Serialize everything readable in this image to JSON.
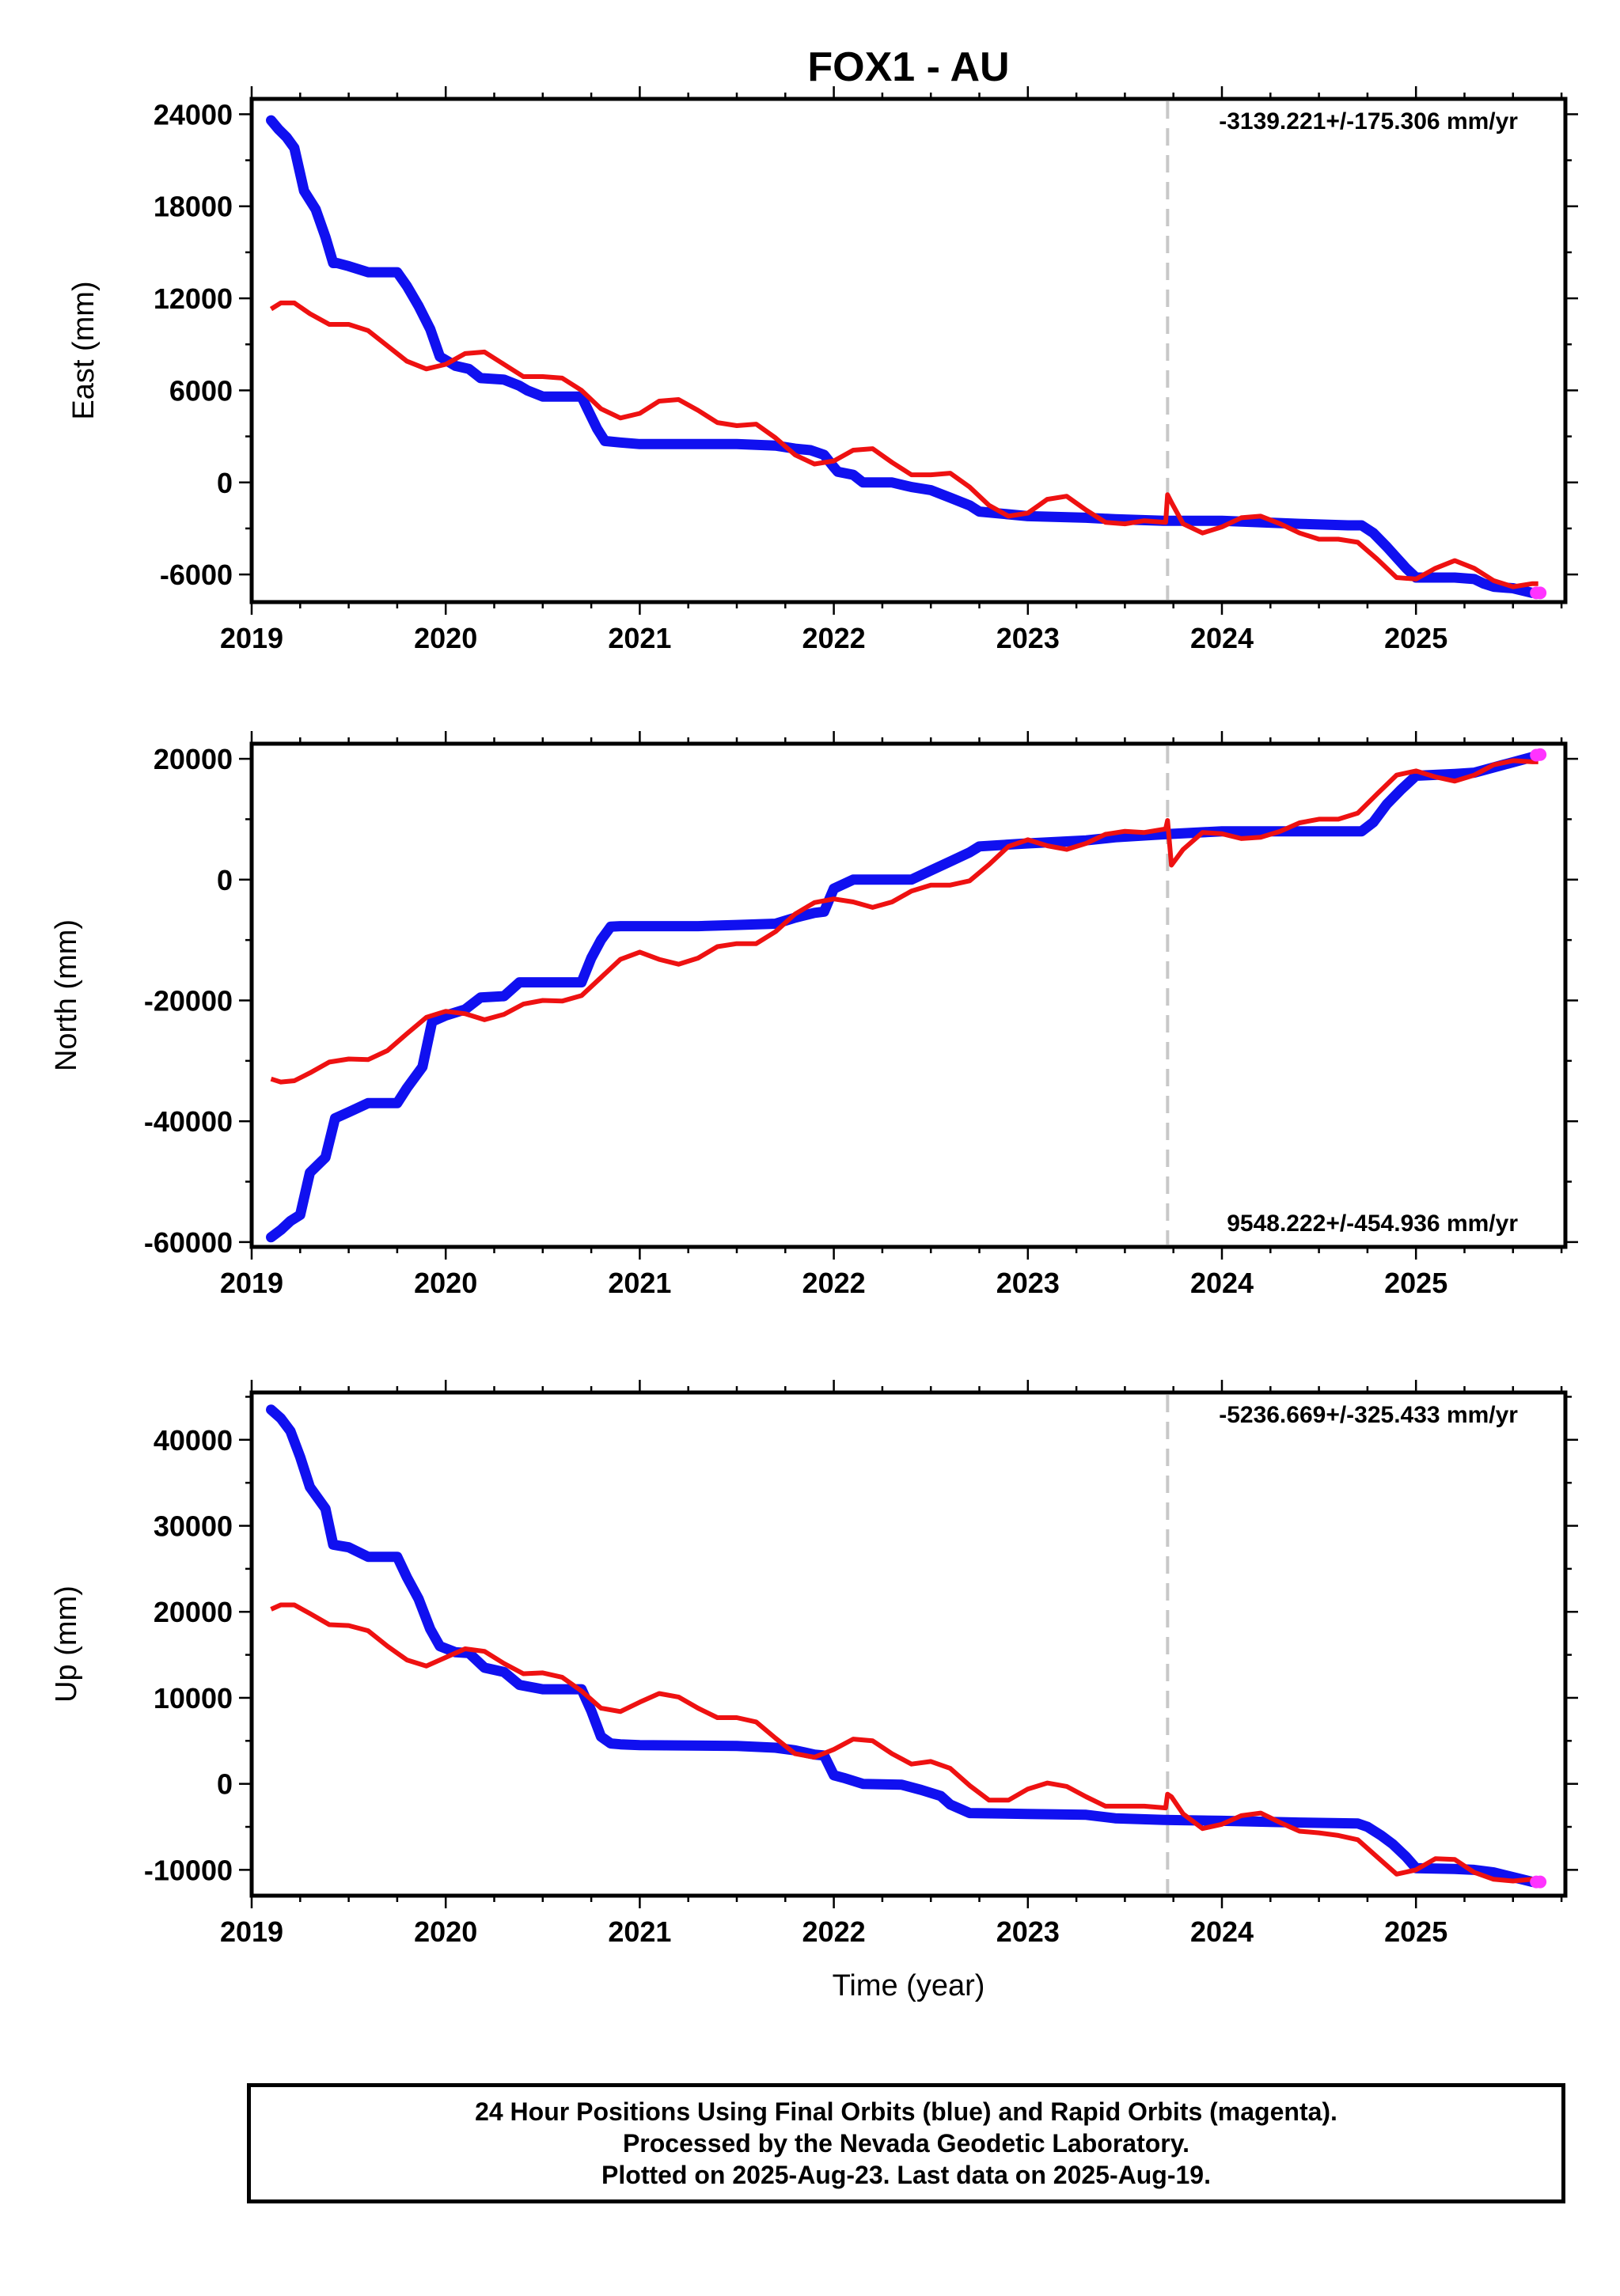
{
  "title": "FOX1 - AU",
  "xlabel": "Time (year)",
  "footer": [
    "24 Hour Positions Using Final Orbits (blue) and Rapid Orbits (magenta).",
    "Processed by the Nevada Geodetic Laboratory.",
    "Plotted on 2025-Aug-23. Last data on 2025-Aug-19."
  ],
  "colors": {
    "final": "#1010f0",
    "rapid": "#ff33ff",
    "model": "#ee1111",
    "break": "#c8c8c8"
  },
  "chart_data": [
    {
      "type": "line",
      "ylabel": "East (mm)",
      "rate": "-3139.221+/-175.306 mm/yr",
      "rate_position": "top-right",
      "xlim": [
        2019.0,
        2025.77
      ],
      "ylim": [
        -7800,
        25000
      ],
      "xticks": [
        "2019",
        "2020",
        "2021",
        "2022",
        "2023",
        "2024",
        "2025"
      ],
      "yticks": [
        "-6000",
        "0",
        "6000",
        "12000",
        "18000",
        "24000"
      ],
      "break_x": 2023.72,
      "series": [
        {
          "role": "final",
          "x": [
            2019.1,
            2019.14,
            2019.18,
            2019.22,
            2019.27,
            2019.33,
            2019.38,
            2019.42,
            2019.44,
            2019.5,
            2019.6,
            2019.75,
            2019.8,
            2019.86,
            2019.92,
            2019.97,
            2020.05,
            2020.12,
            2020.18,
            2020.3,
            2020.38,
            2020.42,
            2020.5,
            2020.7,
            2020.73,
            2020.78,
            2020.82,
            2020.9,
            2021.0,
            2021.5,
            2021.7,
            2021.8,
            2021.88,
            2021.95,
            2022.0,
            2022.02,
            2022.1,
            2022.15,
            2022.3,
            2022.4,
            2022.5,
            2022.6,
            2022.7,
            2022.75,
            2023.0,
            2023.3,
            2023.45,
            2023.7,
            2024.0,
            2024.4,
            2024.65,
            2024.72,
            2024.78,
            2024.85,
            2024.9,
            2024.95,
            2025.0,
            2025.2,
            2025.3,
            2025.35,
            2025.4,
            2025.5,
            2025.6,
            2025.63
          ],
          "y": [
            23600,
            23000,
            22500,
            21800,
            19000,
            17800,
            16000,
            14300,
            14300,
            14100,
            13700,
            13700,
            12800,
            11500,
            10000,
            8200,
            7600,
            7400,
            6800,
            6700,
            6300,
            6000,
            5600,
            5600,
            4800,
            3500,
            2700,
            2600,
            2500,
            2500,
            2400,
            2200,
            2100,
            1800,
            1000,
            700,
            500,
            0,
            0,
            -300,
            -500,
            -1000,
            -1500,
            -1900,
            -2200,
            -2300,
            -2400,
            -2500,
            -2500,
            -2700,
            -2800,
            -2800,
            -3300,
            -4200,
            -4900,
            -5600,
            -6200,
            -6200,
            -6300,
            -6600,
            -6800,
            -6900,
            -7200,
            -7200
          ]
        },
        {
          "role": "rapid",
          "x": [
            2025.62,
            2025.64
          ],
          "y": [
            -7200,
            -7200
          ]
        },
        {
          "role": "model",
          "x": [
            2019.1,
            2019.15,
            2019.22,
            2019.3,
            2019.4,
            2019.5,
            2019.6,
            2019.7,
            2019.8,
            2019.9,
            2020.0,
            2020.1,
            2020.2,
            2020.3,
            2020.4,
            2020.5,
            2020.6,
            2020.7,
            2020.8,
            2020.9,
            2021.0,
            2021.1,
            2021.2,
            2021.3,
            2021.4,
            2021.5,
            2021.6,
            2021.7,
            2021.8,
            2021.9,
            2022.0,
            2022.1,
            2022.2,
            2022.3,
            2022.4,
            2022.5,
            2022.6,
            2022.7,
            2022.8,
            2022.9,
            2023.0,
            2023.1,
            2023.2,
            2023.3,
            2023.4,
            2023.5,
            2023.6,
            2023.71,
            2023.72,
            2023.74,
            2023.8,
            2023.9,
            2024.0,
            2024.1,
            2024.2,
            2024.3,
            2024.4,
            2024.5,
            2024.6,
            2024.7,
            2024.8,
            2024.9,
            2025.0,
            2025.1,
            2025.2,
            2025.3,
            2025.4,
            2025.5,
            2025.6,
            2025.63
          ],
          "y": [
            11300,
            11700,
            11700,
            11000,
            10300,
            10300,
            9900,
            8900,
            7900,
            7400,
            7700,
            8400,
            8500,
            7700,
            6900,
            6900,
            6800,
            6000,
            4800,
            4200,
            4500,
            5300,
            5400,
            4700,
            3900,
            3700,
            3800,
            2900,
            1800,
            1200,
            1400,
            2100,
            2200,
            1300,
            500,
            500,
            600,
            -300,
            -1500,
            -2200,
            -2000,
            -1100,
            -900,
            -1800,
            -2600,
            -2700,
            -2500,
            -2600,
            -800,
            -1300,
            -2700,
            -3300,
            -2900,
            -2300,
            -2200,
            -2700,
            -3300,
            -3700,
            -3700,
            -3900,
            -5000,
            -6200,
            -6300,
            -5600,
            -5100,
            -5600,
            -6400,
            -6800,
            -6600,
            -6600
          ]
        }
      ]
    },
    {
      "type": "line",
      "ylabel": "North (mm)",
      "rate": "9548.222+/-454.936 mm/yr",
      "rate_position": "bottom-right",
      "xlim": [
        2019.0,
        2025.77
      ],
      "ylim": [
        -60800,
        22500
      ],
      "xticks": [
        "2019",
        "2020",
        "2021",
        "2022",
        "2023",
        "2024",
        "2025"
      ],
      "yticks": [
        "-60000",
        "-40000",
        "-20000",
        "0",
        "20000"
      ],
      "break_x": 2023.72,
      "series": [
        {
          "role": "final",
          "x": [
            2019.1,
            2019.15,
            2019.2,
            2019.25,
            2019.3,
            2019.38,
            2019.43,
            2019.5,
            2019.6,
            2019.75,
            2019.8,
            2019.88,
            2019.93,
            2020.0,
            2020.1,
            2020.18,
            2020.3,
            2020.38,
            2020.5,
            2020.7,
            2020.75,
            2020.8,
            2020.85,
            2020.9,
            2021.0,
            2021.3,
            2021.5,
            2021.7,
            2021.8,
            2021.9,
            2021.95,
            2022.0,
            2022.1,
            2022.4,
            2022.5,
            2022.6,
            2022.7,
            2022.75,
            2023.0,
            2023.3,
            2023.45,
            2023.7,
            2024.0,
            2024.4,
            2024.65,
            2024.72,
            2024.78,
            2024.85,
            2024.92,
            2025.0,
            2025.2,
            2025.3,
            2025.45,
            2025.6,
            2025.63
          ],
          "y": [
            -59200,
            -58000,
            -56500,
            -55500,
            -48500,
            -46000,
            -39500,
            -38500,
            -37000,
            -37000,
            -34500,
            -31000,
            -23500,
            -22500,
            -21500,
            -19500,
            -19300,
            -17000,
            -17000,
            -17000,
            -13000,
            -10000,
            -7800,
            -7700,
            -7700,
            -7700,
            -7500,
            -7300,
            -6300,
            -5500,
            -5300,
            -1500,
            0,
            0,
            1500,
            3000,
            4500,
            5500,
            6000,
            6500,
            7000,
            7500,
            8000,
            8000,
            8000,
            8000,
            9500,
            12500,
            14800,
            17200,
            17500,
            17700,
            19000,
            20300,
            20600
          ]
        },
        {
          "role": "rapid",
          "x": [
            2025.62,
            2025.64
          ],
          "y": [
            20600,
            20700
          ]
        },
        {
          "role": "model",
          "x": [
            2019.1,
            2019.15,
            2019.22,
            2019.3,
            2019.4,
            2019.5,
            2019.6,
            2019.7,
            2019.8,
            2019.9,
            2020.0,
            2020.1,
            2020.2,
            2020.3,
            2020.4,
            2020.5,
            2020.6,
            2020.7,
            2020.8,
            2020.9,
            2021.0,
            2021.1,
            2021.2,
            2021.3,
            2021.4,
            2021.5,
            2021.6,
            2021.7,
            2021.8,
            2021.9,
            2022.0,
            2022.1,
            2022.2,
            2022.3,
            2022.4,
            2022.5,
            2022.6,
            2022.7,
            2022.8,
            2022.9,
            2023.0,
            2023.1,
            2023.2,
            2023.3,
            2023.4,
            2023.5,
            2023.6,
            2023.71,
            2023.72,
            2023.74,
            2023.8,
            2023.9,
            2024.0,
            2024.1,
            2024.2,
            2024.3,
            2024.4,
            2024.5,
            2024.6,
            2024.7,
            2024.8,
            2024.9,
            2025.0,
            2025.1,
            2025.2,
            2025.3,
            2025.4,
            2025.5,
            2025.6,
            2025.63
          ],
          "y": [
            -33000,
            -33500,
            -33300,
            -32000,
            -30200,
            -29700,
            -29800,
            -28300,
            -25500,
            -22800,
            -21800,
            -22200,
            -23200,
            -22300,
            -20600,
            -20000,
            -20100,
            -19200,
            -16200,
            -13200,
            -12000,
            -13200,
            -14000,
            -13000,
            -11100,
            -10600,
            -10600,
            -8600,
            -5700,
            -3800,
            -3200,
            -3700,
            -4600,
            -3700,
            -1900,
            -900,
            -900,
            -200,
            2500,
            5500,
            6600,
            5600,
            5000,
            6000,
            7500,
            8000,
            7800,
            8400,
            9800,
            2400,
            5000,
            7800,
            7600,
            6800,
            7000,
            8000,
            9400,
            10000,
            10000,
            11000,
            14200,
            17300,
            18000,
            17000,
            16300,
            17300,
            19000,
            19700,
            19500,
            19500
          ]
        }
      ]
    },
    {
      "type": "line",
      "ylabel": "Up (mm)",
      "rate": "-5236.669+/-325.433 mm/yr",
      "rate_position": "top-right",
      "xlim": [
        2019.0,
        2025.77
      ],
      "ylim": [
        -13000,
        45500
      ],
      "xticks": [
        "2019",
        "2020",
        "2021",
        "2022",
        "2023",
        "2024",
        "2025"
      ],
      "yticks": [
        "-10000",
        "0",
        "10000",
        "20000",
        "30000",
        "40000"
      ],
      "break_x": 2023.72,
      "series": [
        {
          "role": "final",
          "x": [
            2019.1,
            2019.15,
            2019.2,
            2019.25,
            2019.3,
            2019.38,
            2019.42,
            2019.5,
            2019.6,
            2019.75,
            2019.8,
            2019.86,
            2019.92,
            2019.97,
            2020.05,
            2020.12,
            2020.2,
            2020.3,
            2020.38,
            2020.5,
            2020.7,
            2020.75,
            2020.8,
            2020.85,
            2020.9,
            2021.0,
            2021.5,
            2021.7,
            2021.8,
            2021.9,
            2021.95,
            2022.0,
            2022.05,
            2022.15,
            2022.35,
            2022.45,
            2022.55,
            2022.6,
            2022.7,
            2023.0,
            2023.3,
            2023.45,
            2023.7,
            2024.0,
            2024.4,
            2024.7,
            2024.75,
            2024.82,
            2024.88,
            2024.95,
            2025.0,
            2025.2,
            2025.3,
            2025.4,
            2025.6,
            2025.63
          ],
          "y": [
            43500,
            42500,
            41000,
            38000,
            34500,
            32000,
            27800,
            27500,
            26400,
            26400,
            24000,
            21500,
            18000,
            16000,
            15300,
            15200,
            13500,
            13000,
            11500,
            11000,
            11000,
            8500,
            5500,
            4700,
            4600,
            4500,
            4400,
            4200,
            3900,
            3400,
            3300,
            1000,
            700,
            0,
            -100,
            -700,
            -1400,
            -2400,
            -3400,
            -3500,
            -3600,
            -4000,
            -4200,
            -4300,
            -4500,
            -4600,
            -5000,
            -6000,
            -7000,
            -8500,
            -9800,
            -9900,
            -10000,
            -10300,
            -11400,
            -11400
          ]
        },
        {
          "role": "rapid",
          "x": [
            2025.62,
            2025.64
          ],
          "y": [
            -11400,
            -11400
          ]
        },
        {
          "role": "model",
          "x": [
            2019.1,
            2019.15,
            2019.22,
            2019.3,
            2019.4,
            2019.5,
            2019.6,
            2019.7,
            2019.8,
            2019.9,
            2020.0,
            2020.1,
            2020.2,
            2020.3,
            2020.4,
            2020.5,
            2020.6,
            2020.7,
            2020.8,
            2020.9,
            2021.0,
            2021.1,
            2021.2,
            2021.3,
            2021.4,
            2021.5,
            2021.6,
            2021.7,
            2021.8,
            2021.9,
            2022.0,
            2022.1,
            2022.2,
            2022.3,
            2022.4,
            2022.5,
            2022.6,
            2022.7,
            2022.8,
            2022.9,
            2023.0,
            2023.1,
            2023.2,
            2023.3,
            2023.4,
            2023.5,
            2023.6,
            2023.71,
            2023.72,
            2023.74,
            2023.8,
            2023.9,
            2024.0,
            2024.1,
            2024.2,
            2024.3,
            2024.4,
            2024.5,
            2024.6,
            2024.7,
            2024.8,
            2024.9,
            2025.0,
            2025.1,
            2025.2,
            2025.3,
            2025.4,
            2025.5,
            2025.6,
            2025.63
          ],
          "y": [
            20300,
            20800,
            20800,
            19800,
            18500,
            18400,
            17800,
            16000,
            14400,
            13700,
            14700,
            15700,
            15400,
            14000,
            12800,
            12900,
            12400,
            10800,
            8800,
            8400,
            9500,
            10500,
            10100,
            8800,
            7700,
            7700,
            7200,
            5300,
            3500,
            3100,
            4000,
            5200,
            5000,
            3500,
            2300,
            2600,
            1800,
            -200,
            -1900,
            -1900,
            -600,
            100,
            -300,
            -1500,
            -2600,
            -2600,
            -2600,
            -2800,
            -1200,
            -1500,
            -3500,
            -5200,
            -4700,
            -3700,
            -3400,
            -4500,
            -5500,
            -5700,
            -6000,
            -6500,
            -8500,
            -10500,
            -10000,
            -8700,
            -8800,
            -10300,
            -11100,
            -11300,
            -11100,
            -11200
          ]
        }
      ]
    }
  ]
}
